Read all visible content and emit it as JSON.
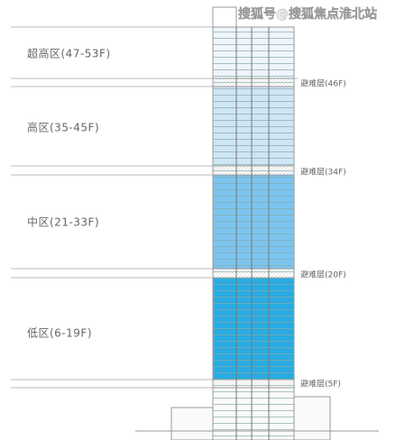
{
  "watermark": "搜狐号@搜狐焦点淮北站",
  "zones": [
    {
      "label": "超高区(47-53F)"
    },
    {
      "label": "高区(35-45F)"
    },
    {
      "label": "中区(21-33F)"
    },
    {
      "label": "低区(6-19F)"
    }
  ],
  "refuge_floors": [
    {
      "label": "避难层(46F)"
    },
    {
      "label": "避难层(34F)"
    },
    {
      "label": "避难层(20F)"
    },
    {
      "label": "避难层(5F)"
    }
  ]
}
